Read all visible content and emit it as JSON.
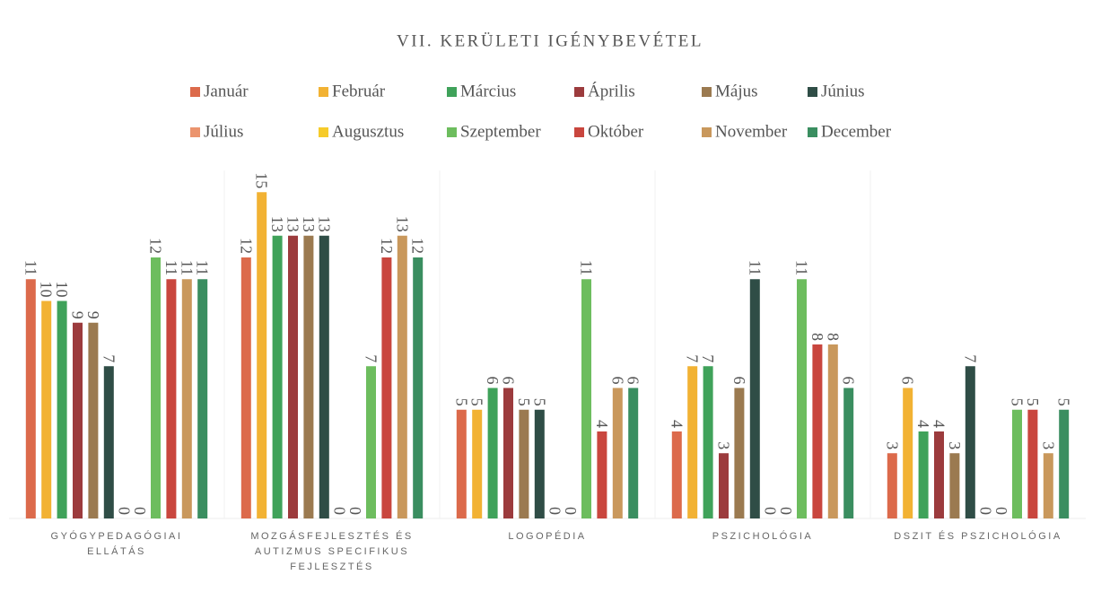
{
  "chart_data": {
    "type": "bar",
    "title": "VII. KERÜLETI IGÉNYBEVÉTEL",
    "categories": [
      "GYÓGYPEDAGÓGIAI ELLÁTÁS",
      "MOZGÁSFEJLESZTÉS ÉS AUTIZMUS SPECIFIKUS FEJLESZTÉS",
      "LOGOPÉDIA",
      "PSZICHOLÓGIA",
      "DSZIT ÉS PSZICHOLÓGIA"
    ],
    "ylim": [
      0,
      16
    ],
    "series": [
      {
        "name": "Január",
        "color": "#dc6a4b",
        "values": [
          11,
          12,
          5,
          4,
          3
        ]
      },
      {
        "name": "Február",
        "color": "#f2b233",
        "values": [
          10,
          15,
          5,
          7,
          6
        ]
      },
      {
        "name": "Március",
        "color": "#3fa25a",
        "values": [
          10,
          13,
          6,
          7,
          4
        ]
      },
      {
        "name": "Április",
        "color": "#9c3b3d",
        "values": [
          9,
          13,
          6,
          3,
          4
        ]
      },
      {
        "name": "Május",
        "color": "#9b7a50",
        "values": [
          9,
          13,
          5,
          6,
          3
        ]
      },
      {
        "name": "Június",
        "color": "#2f4d46",
        "values": [
          7,
          13,
          5,
          11,
          7
        ]
      },
      {
        "name": "Július",
        "color": "#eb946e",
        "values": [
          0,
          0,
          0,
          0,
          0
        ]
      },
      {
        "name": "Augusztus",
        "color": "#f6cb2a",
        "values": [
          0,
          0,
          0,
          0,
          0
        ]
      },
      {
        "name": "Szeptember",
        "color": "#6dbd5e",
        "values": [
          12,
          7,
          11,
          11,
          5
        ]
      },
      {
        "name": "Október",
        "color": "#c9463e",
        "values": [
          11,
          12,
          4,
          8,
          5
        ]
      },
      {
        "name": "November",
        "color": "#c9985c",
        "values": [
          11,
          13,
          6,
          8,
          3
        ]
      },
      {
        "name": "December",
        "color": "#3a8e60",
        "values": [
          11,
          12,
          6,
          6,
          5
        ]
      }
    ]
  }
}
